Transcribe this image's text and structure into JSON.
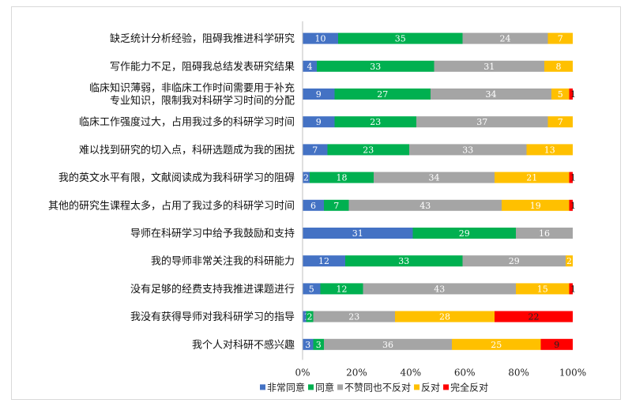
{
  "chart_data": {
    "type": "bar",
    "orientation": "horizontal",
    "stacked": "percent",
    "categories": [
      [
        "缺乏统计分析经验，阻碍我推进科学研究"
      ],
      [
        "写作能力不足，阻碍我总结发表研究结果"
      ],
      [
        "临床知识薄弱，非临床工作时间需要用于补充",
        "专业知识，限制我对科研学习时间的分配"
      ],
      [
        "临床工作强度过大，占用我过多的科研学习时间"
      ],
      [
        "难以找到研究的切入点，科研选题成为我的困扰"
      ],
      [
        "我的英文水平有限，文献阅读成为我科研学习的阻碍"
      ],
      [
        "其他的研究生课程太多，占用了我过多的科研学习时间"
      ],
      [
        "导师在科研学习中给予我鼓励和支持"
      ],
      [
        "我的导师非常关注我的科研能力"
      ],
      [
        "没有足够的经费支持我推进课题进行"
      ],
      [
        "我没有获得导师对我科研学习的指导"
      ],
      [
        "我个人对科研不感兴趣"
      ]
    ],
    "series": [
      {
        "name": "非常同意",
        "color": "#4472c4",
        "label_color": "#ffffff",
        "values": [
          10,
          4,
          9,
          9,
          7,
          2,
          6,
          31,
          12,
          5,
          1,
          3
        ]
      },
      {
        "name": "同意",
        "color": "#00b050",
        "label_color": "#ffffff",
        "values": [
          35,
          33,
          27,
          23,
          23,
          18,
          7,
          29,
          33,
          12,
          2,
          3
        ]
      },
      {
        "name": "不赞同也不反对",
        "color": "#a5a5a5",
        "label_color": "#ffffff",
        "values": [
          24,
          31,
          34,
          37,
          33,
          34,
          43,
          16,
          29,
          43,
          23,
          36
        ]
      },
      {
        "name": "反对",
        "color": "#ffc000",
        "label_color": "#ffffff",
        "values": [
          7,
          8,
          5,
          7,
          13,
          21,
          19,
          0,
          2,
          15,
          28,
          25
        ]
      },
      {
        "name": "完全反对",
        "color": "#ff0000",
        "label_color": "#222222",
        "values": [
          0,
          0,
          1,
          0,
          0,
          1,
          1,
          0,
          0,
          1,
          22,
          9
        ]
      }
    ],
    "x_ticks": [
      "0%",
      "20%",
      "40%",
      "60%",
      "80%",
      "100%"
    ],
    "xlim": [
      0,
      100
    ],
    "grid": false,
    "legend_position": "bottom"
  }
}
